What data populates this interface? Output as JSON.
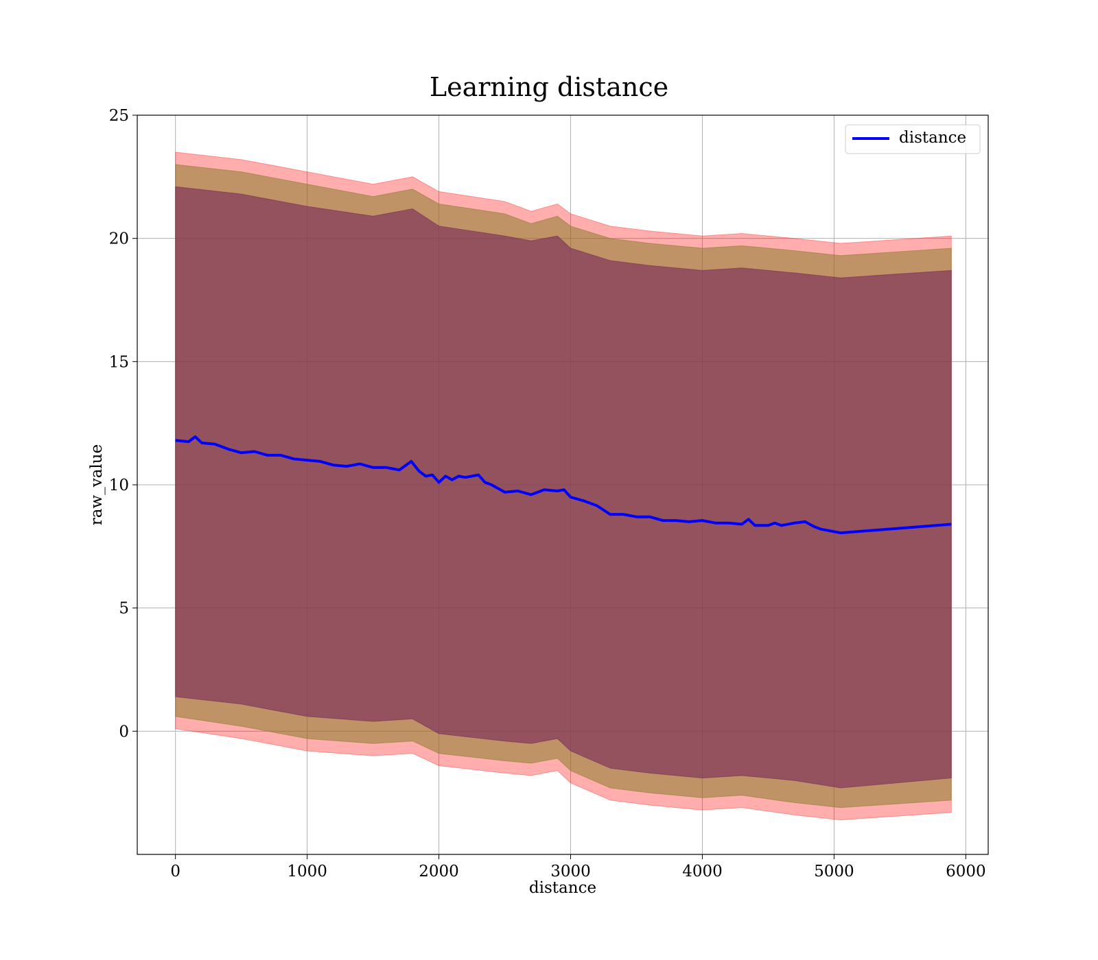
{
  "chart_data": {
    "type": "line",
    "title": "Learning distance",
    "xlabel": "distance",
    "ylabel": "raw_value",
    "xlim": [
      -290,
      6170
    ],
    "ylim": [
      -5,
      25
    ],
    "xticks": [
      0,
      1000,
      2000,
      3000,
      4000,
      5000,
      6000
    ],
    "yticks": [
      0,
      5,
      10,
      15,
      20,
      25
    ],
    "grid": true,
    "legend": {
      "position": "top-right",
      "entries": [
        "distance"
      ]
    },
    "colors": {
      "line": "#0000ff",
      "band_outer": "#ff0000",
      "band_mid": "#8b7d2a",
      "band_inner": "#7b2f5a"
    },
    "series": [
      {
        "name": "distance",
        "x": [
          0,
          100,
          150,
          200,
          300,
          400,
          500,
          600,
          700,
          800,
          900,
          1000,
          1100,
          1200,
          1300,
          1400,
          1500,
          1600,
          1700,
          1790,
          1850,
          1900,
          1950,
          2000,
          2050,
          2100,
          2150,
          2200,
          2300,
          2350,
          2400,
          2500,
          2600,
          2700,
          2800,
          2900,
          2950,
          3000,
          3100,
          3200,
          3300,
          3400,
          3500,
          3600,
          3700,
          3800,
          3900,
          4000,
          4100,
          4200,
          4300,
          4350,
          4400,
          4500,
          4550,
          4600,
          4700,
          4780,
          4850,
          4900,
          5050,
          5890
        ],
        "y": [
          11.8,
          11.75,
          11.95,
          11.7,
          11.65,
          11.45,
          11.3,
          11.35,
          11.2,
          11.2,
          11.05,
          11.0,
          10.95,
          10.8,
          10.75,
          10.85,
          10.7,
          10.7,
          10.6,
          10.95,
          10.55,
          10.35,
          10.4,
          10.1,
          10.35,
          10.2,
          10.35,
          10.3,
          10.4,
          10.1,
          10.0,
          9.7,
          9.75,
          9.6,
          9.8,
          9.75,
          9.8,
          9.5,
          9.35,
          9.15,
          8.8,
          8.8,
          8.7,
          8.7,
          8.55,
          8.55,
          8.5,
          8.55,
          8.45,
          8.45,
          8.4,
          8.6,
          8.35,
          8.35,
          8.45,
          8.35,
          8.45,
          8.5,
          8.3,
          8.2,
          8.05,
          8.4
        ],
        "band_outer": {
          "x": [
            0,
            500,
            1000,
            1500,
            1800,
            2000,
            2500,
            2700,
            2900,
            3000,
            3300,
            3600,
            4000,
            4300,
            4700,
            5050,
            5890
          ],
          "upper": [
            23.5,
            23.2,
            22.7,
            22.2,
            22.5,
            21.9,
            21.5,
            21.1,
            21.4,
            21.0,
            20.5,
            20.3,
            20.1,
            20.2,
            20.0,
            19.8,
            20.1
          ],
          "lower": [
            0.1,
            -0.3,
            -0.8,
            -1.0,
            -0.9,
            -1.4,
            -1.7,
            -1.8,
            -1.6,
            -2.1,
            -2.8,
            -3.0,
            -3.2,
            -3.1,
            -3.4,
            -3.6,
            -3.3
          ]
        },
        "band_mid": {
          "x": [
            0,
            500,
            1000,
            1500,
            1800,
            2000,
            2500,
            2700,
            2900,
            3000,
            3300,
            3600,
            4000,
            4300,
            4700,
            5050,
            5890
          ],
          "upper": [
            23.0,
            22.7,
            22.2,
            21.7,
            22.0,
            21.4,
            21.0,
            20.6,
            20.9,
            20.5,
            20.0,
            19.8,
            19.6,
            19.7,
            19.5,
            19.3,
            19.6
          ],
          "lower": [
            0.6,
            0.2,
            -0.3,
            -0.5,
            -0.4,
            -0.9,
            -1.2,
            -1.3,
            -1.1,
            -1.6,
            -2.3,
            -2.5,
            -2.7,
            -2.6,
            -2.9,
            -3.1,
            -2.8
          ]
        },
        "band_inner": {
          "x": [
            0,
            500,
            1000,
            1500,
            1800,
            2000,
            2500,
            2700,
            2900,
            3000,
            3300,
            3600,
            4000,
            4300,
            4700,
            5050,
            5890
          ],
          "upper": [
            22.1,
            21.8,
            21.3,
            20.9,
            21.2,
            20.5,
            20.1,
            19.9,
            20.1,
            19.6,
            19.1,
            18.9,
            18.7,
            18.8,
            18.6,
            18.4,
            18.7
          ],
          "lower": [
            1.4,
            1.1,
            0.6,
            0.4,
            0.5,
            -0.1,
            -0.4,
            -0.5,
            -0.3,
            -0.8,
            -1.5,
            -1.7,
            -1.9,
            -1.8,
            -2.0,
            -2.3,
            -1.9
          ]
        }
      }
    ]
  }
}
